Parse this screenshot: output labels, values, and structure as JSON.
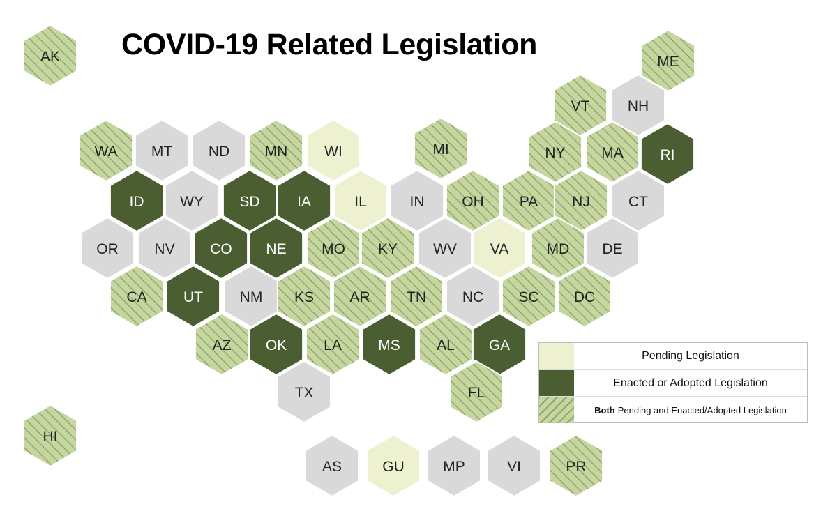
{
  "title": "COVID-19 Related Legislation",
  "colors": {
    "pending": "#eef1cf",
    "enacted": "#4a5e31",
    "both": "#c5d79e",
    "both_hatch": "#8c9c6c",
    "none": "#d9d9da"
  },
  "legend": {
    "pending": "Pending Legislation",
    "enacted": "Enacted or Adopted Legislation",
    "both_bold": "Both",
    "both_rest": "Pending and Enacted/Adopted Legislation"
  },
  "regions": [
    {
      "code": "AK",
      "status": "both"
    },
    {
      "code": "ME",
      "status": "both"
    },
    {
      "code": "VT",
      "status": "both"
    },
    {
      "code": "NH",
      "status": "none"
    },
    {
      "code": "WA",
      "status": "both"
    },
    {
      "code": "MT",
      "status": "none"
    },
    {
      "code": "ND",
      "status": "none"
    },
    {
      "code": "MN",
      "status": "both"
    },
    {
      "code": "WI",
      "status": "pending"
    },
    {
      "code": "MI",
      "status": "both"
    },
    {
      "code": "NY",
      "status": "both"
    },
    {
      "code": "MA",
      "status": "both"
    },
    {
      "code": "RI",
      "status": "enacted"
    },
    {
      "code": "ID",
      "status": "enacted"
    },
    {
      "code": "WY",
      "status": "none"
    },
    {
      "code": "SD",
      "status": "enacted"
    },
    {
      "code": "IA",
      "status": "enacted"
    },
    {
      "code": "IL",
      "status": "pending"
    },
    {
      "code": "IN",
      "status": "none"
    },
    {
      "code": "OH",
      "status": "both"
    },
    {
      "code": "PA",
      "status": "both"
    },
    {
      "code": "NJ",
      "status": "both"
    },
    {
      "code": "CT",
      "status": "none"
    },
    {
      "code": "OR",
      "status": "none"
    },
    {
      "code": "NV",
      "status": "none"
    },
    {
      "code": "CO",
      "status": "enacted"
    },
    {
      "code": "NE",
      "status": "enacted"
    },
    {
      "code": "MO",
      "status": "both"
    },
    {
      "code": "KY",
      "status": "both"
    },
    {
      "code": "WV",
      "status": "none"
    },
    {
      "code": "VA",
      "status": "pending"
    },
    {
      "code": "MD",
      "status": "both"
    },
    {
      "code": "DE",
      "status": "none"
    },
    {
      "code": "CA",
      "status": "both"
    },
    {
      "code": "UT",
      "status": "enacted"
    },
    {
      "code": "NM",
      "status": "none"
    },
    {
      "code": "KS",
      "status": "both"
    },
    {
      "code": "AR",
      "status": "both"
    },
    {
      "code": "TN",
      "status": "both"
    },
    {
      "code": "NC",
      "status": "none"
    },
    {
      "code": "SC",
      "status": "both"
    },
    {
      "code": "DC",
      "status": "both"
    },
    {
      "code": "AZ",
      "status": "both"
    },
    {
      "code": "OK",
      "status": "enacted"
    },
    {
      "code": "LA",
      "status": "both"
    },
    {
      "code": "MS",
      "status": "enacted"
    },
    {
      "code": "AL",
      "status": "both"
    },
    {
      "code": "GA",
      "status": "enacted"
    },
    {
      "code": "TX",
      "status": "none"
    },
    {
      "code": "FL",
      "status": "both"
    },
    {
      "code": "HI",
      "status": "both"
    },
    {
      "code": "AS",
      "status": "none"
    },
    {
      "code": "GU",
      "status": "pending"
    },
    {
      "code": "MP",
      "status": "none"
    },
    {
      "code": "VI",
      "status": "none"
    },
    {
      "code": "PR",
      "status": "both"
    }
  ]
}
